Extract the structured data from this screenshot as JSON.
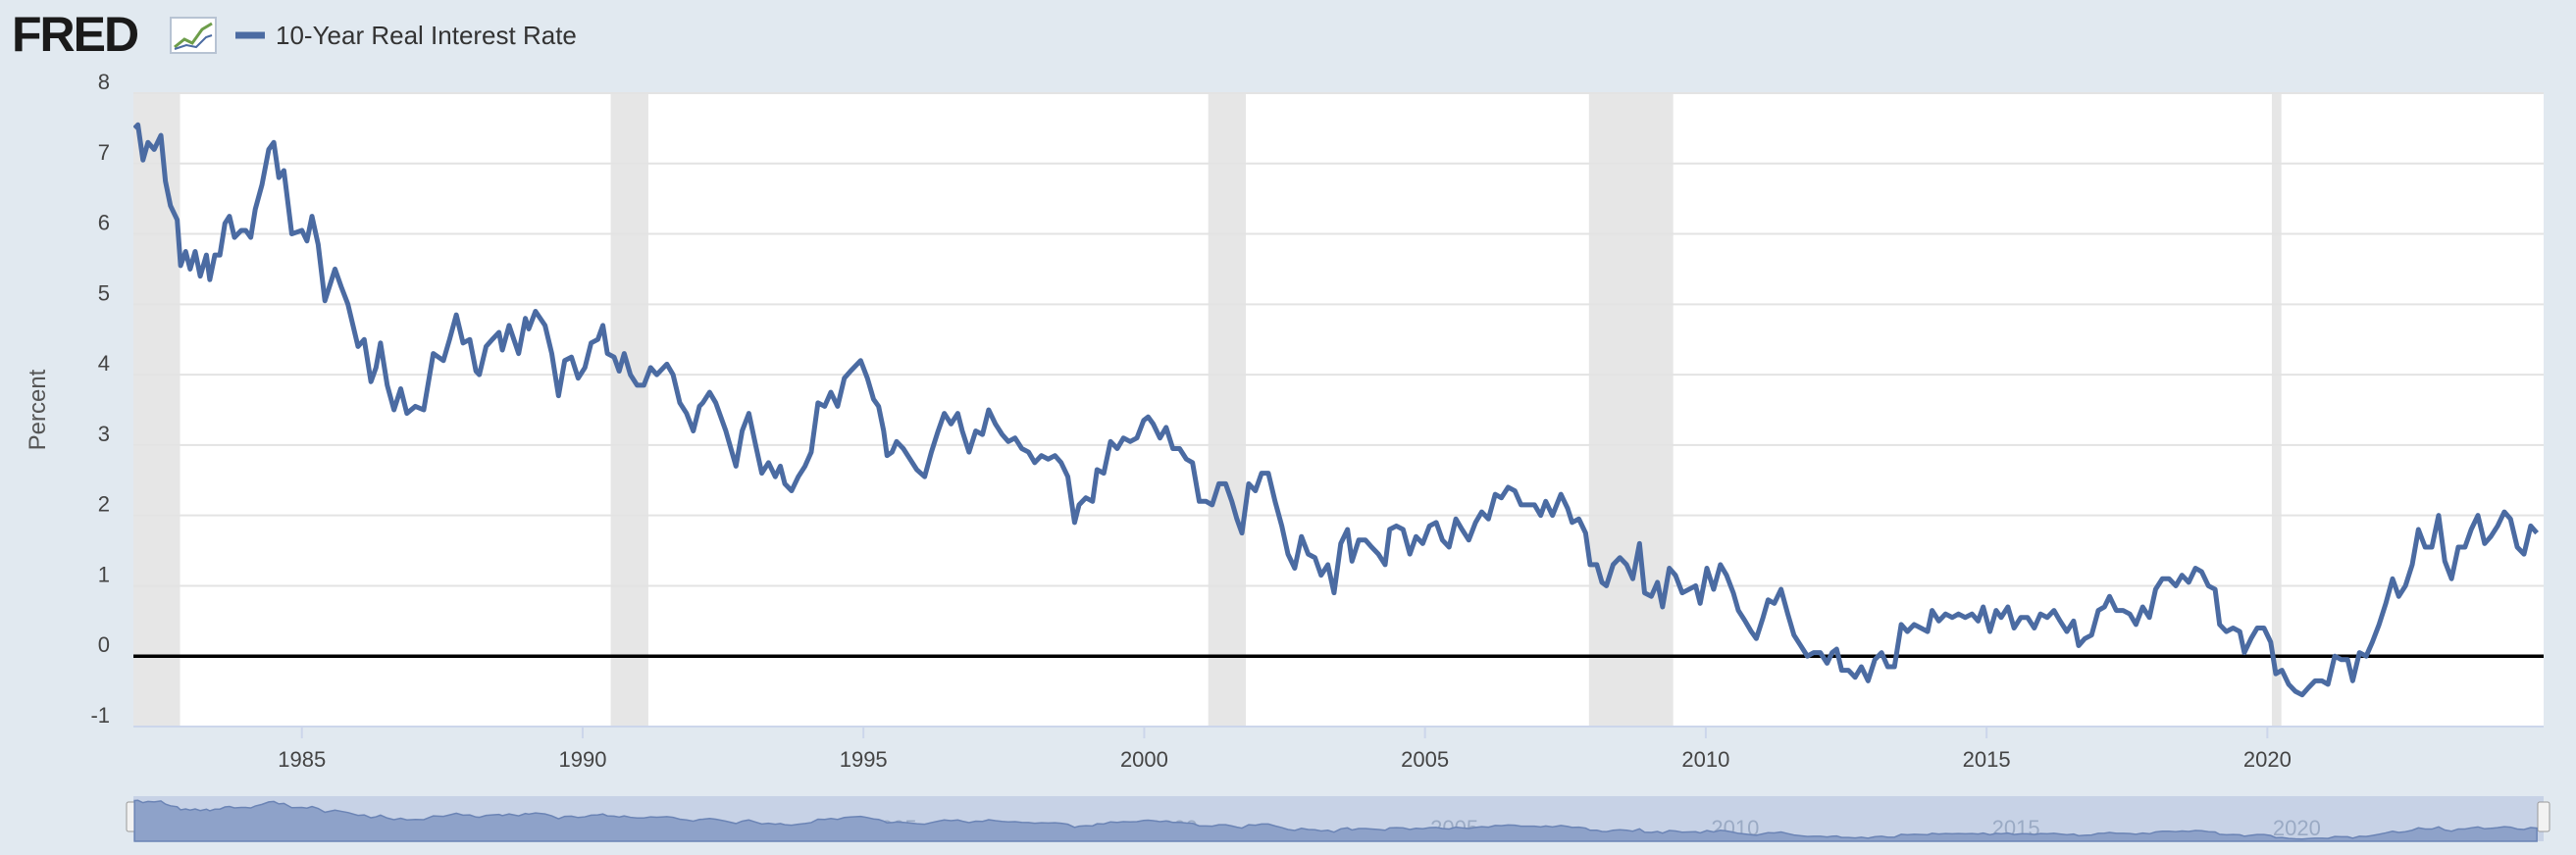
{
  "chart_data": {
    "type": "line",
    "logo_text": "FRED",
    "ylabel": "Percent",
    "xlim": [
      1982.0,
      2024.92
    ],
    "xticks": [
      1985,
      1990,
      1995,
      2000,
      2005,
      2010,
      2015,
      2020
    ],
    "ylim": [
      -1,
      8
    ],
    "yticks": [
      -1,
      0,
      1,
      2,
      3,
      4,
      5,
      6,
      7,
      8
    ],
    "grid": true,
    "zero_line": true,
    "legend": "top-left",
    "recessions": [
      [
        1981.58,
        1982.83
      ],
      [
        1990.5,
        1991.17
      ],
      [
        2001.14,
        2001.81
      ],
      [
        2007.92,
        2009.42
      ],
      [
        2020.08,
        2020.25
      ]
    ],
    "x": [
      1982.02,
      1982.08,
      1982.17,
      1982.26,
      1982.37,
      1982.49,
      1982.57,
      1982.66,
      1982.78,
      1982.84,
      1982.93,
      1983.01,
      1983.1,
      1983.19,
      1983.3,
      1983.36,
      1983.45,
      1983.54,
      1983.63,
      1983.71,
      1983.8,
      1983.92,
      1984.0,
      1984.09,
      1984.17,
      1984.29,
      1984.41,
      1984.5,
      1984.59,
      1984.68,
      1984.82,
      1985.0,
      1985.09,
      1985.18,
      1985.29,
      1985.41,
      1985.59,
      1985.7,
      1985.82,
      1986.0,
      1986.11,
      1986.23,
      1986.32,
      1986.4,
      1986.52,
      1986.64,
      1986.76,
      1986.87,
      1987.02,
      1987.17,
      1987.34,
      1987.52,
      1987.63,
      1987.75,
      1987.87,
      1987.99,
      1988.1,
      1988.16,
      1988.28,
      1988.39,
      1988.51,
      1988.57,
      1988.69,
      1988.86,
      1988.98,
      1989.04,
      1989.16,
      1989.33,
      1989.45,
      1989.57,
      1989.68,
      1989.8,
      1989.92,
      1990.04,
      1990.15,
      1990.27,
      1990.36,
      1990.44,
      1990.56,
      1990.65,
      1990.74,
      1990.85,
      1990.97,
      1991.09,
      1991.21,
      1991.32,
      1991.44,
      1991.5,
      1991.61,
      1991.73,
      1991.85,
      1991.97,
      1992.08,
      1992.14,
      1992.26,
      1992.37,
      1992.55,
      1992.73,
      1992.84,
      1992.96,
      1993.08,
      1993.19,
      1993.31,
      1993.43,
      1993.52,
      1993.6,
      1993.72,
      1993.84,
      1993.96,
      1994.07,
      1994.19,
      1994.31,
      1994.42,
      1994.54,
      1994.66,
      1994.77,
      1994.95,
      1995.07,
      1995.18,
      1995.27,
      1995.36,
      1995.42,
      1995.51,
      1995.59,
      1995.71,
      1995.83,
      1995.95,
      1996.09,
      1996.21,
      1996.33,
      1996.44,
      1996.56,
      1996.68,
      1996.76,
      1996.88,
      1997.0,
      1997.12,
      1997.23,
      1997.35,
      1997.47,
      1997.58,
      1997.7,
      1997.82,
      1997.94,
      1998.05,
      1998.17,
      1998.29,
      1998.41,
      1998.52,
      1998.64,
      1998.76,
      1998.84,
      1998.96,
      1999.08,
      1999.16,
      1999.28,
      1999.4,
      1999.52,
      1999.63,
      1999.75,
      1999.87,
      1999.99,
      2000.07,
      2000.16,
      2000.28,
      2000.39,
      2000.51,
      2000.63,
      2000.75,
      2000.86,
      2000.98,
      2001.1,
      2001.21,
      2001.33,
      2001.45,
      2001.56,
      2001.65,
      2001.74,
      2001.86,
      2001.98,
      2002.09,
      2002.21,
      2002.33,
      2002.45,
      2002.56,
      2002.68,
      2002.8,
      2002.92,
      2003.04,
      2003.15,
      2003.27,
      2003.38,
      2003.5,
      2003.62,
      2003.7,
      2003.82,
      2003.94,
      2004.05,
      2004.17,
      2004.29,
      2004.37,
      2004.49,
      2004.61,
      2004.73,
      2004.84,
      2004.96,
      2005.08,
      2005.2,
      2005.31,
      2005.43,
      2005.55,
      2005.66,
      2005.78,
      2005.9,
      2006.01,
      2006.13,
      2006.25,
      2006.36,
      2006.48,
      2006.6,
      2006.71,
      2006.83,
      2006.95,
      2007.06,
      2007.15,
      2007.27,
      2007.42,
      2007.54,
      2007.62,
      2007.74,
      2007.86,
      2007.94,
      2008.06,
      2008.15,
      2008.23,
      2008.35,
      2008.47,
      2008.59,
      2008.7,
      2008.82,
      2008.91,
      2009.03,
      2009.14,
      2009.23,
      2009.35,
      2009.46,
      2009.58,
      2009.7,
      2009.82,
      2009.9,
      2010.02,
      2010.14,
      2010.26,
      2010.37,
      2010.49,
      2010.58,
      2010.7,
      2010.81,
      2010.9,
      2011.02,
      2011.11,
      2011.22,
      2011.34,
      2011.46,
      2011.57,
      2011.69,
      2011.81,
      2011.92,
      2012.04,
      2012.16,
      2012.25,
      2012.33,
      2012.42,
      2012.54,
      2012.66,
      2012.77,
      2012.89,
      2013.01,
      2013.13,
      2013.24,
      2013.36,
      2013.48,
      2013.59,
      2013.71,
      2013.83,
      2013.95,
      2014.03,
      2014.15,
      2014.27,
      2014.39,
      2014.5,
      2014.62,
      2014.74,
      2014.85,
      2014.94,
      2015.06,
      2015.17,
      2015.26,
      2015.38,
      2015.49,
      2015.61,
      2015.73,
      2015.85,
      2015.96,
      2016.08,
      2016.2,
      2016.31,
      2016.43,
      2016.55,
      2016.64,
      2016.75,
      2016.87,
      2016.99,
      2017.1,
      2017.19,
      2017.31,
      2017.43,
      2017.55,
      2017.66,
      2017.78,
      2017.9,
      2018.01,
      2018.13,
      2018.25,
      2018.37,
      2018.48,
      2018.6,
      2018.72,
      2018.83,
      2018.95,
      2019.07,
      2019.15,
      2019.27,
      2019.39,
      2019.51,
      2019.59,
      2019.71,
      2019.82,
      2019.94,
      2020.06,
      2020.15,
      2020.26,
      2020.38,
      2020.5,
      2020.62,
      2020.73,
      2020.85,
      2020.97,
      2021.08,
      2021.2,
      2021.32,
      2021.43,
      2021.52,
      2021.64,
      2021.76,
      2021.87,
      2021.99,
      2022.11,
      2022.23,
      2022.34,
      2022.46,
      2022.58,
      2022.69,
      2022.81,
      2022.93,
      2023.05,
      2023.16,
      2023.28,
      2023.4,
      2023.52,
      2023.63,
      2023.75,
      2023.87,
      2023.98,
      2024.1,
      2024.22,
      2024.33,
      2024.45,
      2024.57,
      2024.69,
      2024.8
    ],
    "series": [
      {
        "name": "10-Year Real Interest Rate",
        "color": "#4b6ba2",
        "values": [
          7.5,
          7.55,
          7.05,
          7.3,
          7.2,
          7.4,
          6.75,
          6.4,
          6.2,
          5.55,
          5.75,
          5.5,
          5.75,
          5.4,
          5.7,
          5.35,
          5.7,
          5.7,
          6.15,
          6.25,
          5.95,
          6.05,
          6.05,
          5.95,
          6.35,
          6.7,
          7.2,
          7.3,
          6.8,
          6.9,
          6.0,
          6.05,
          5.9,
          6.25,
          5.85,
          5.05,
          5.5,
          5.25,
          5.0,
          4.4,
          4.5,
          3.9,
          4.1,
          4.45,
          3.85,
          3.5,
          3.8,
          3.45,
          3.55,
          3.5,
          4.3,
          4.2,
          4.5,
          4.85,
          4.45,
          4.5,
          4.05,
          4.0,
          4.4,
          4.5,
          4.6,
          4.35,
          4.7,
          4.3,
          4.8,
          4.65,
          4.9,
          4.7,
          4.3,
          3.7,
          4.2,
          4.25,
          3.95,
          4.1,
          4.45,
          4.5,
          4.7,
          4.3,
          4.25,
          4.05,
          4.3,
          4.0,
          3.85,
          3.85,
          4.1,
          4.0,
          4.1,
          4.15,
          4.0,
          3.6,
          3.45,
          3.2,
          3.55,
          3.6,
          3.75,
          3.6,
          3.2,
          2.7,
          3.2,
          3.45,
          3.0,
          2.6,
          2.75,
          2.55,
          2.7,
          2.45,
          2.35,
          2.55,
          2.7,
          2.9,
          3.6,
          3.55,
          3.75,
          3.55,
          3.95,
          4.05,
          4.2,
          3.95,
          3.65,
          3.55,
          3.2,
          2.85,
          2.9,
          3.05,
          2.95,
          2.8,
          2.65,
          2.55,
          2.9,
          3.2,
          3.45,
          3.3,
          3.45,
          3.2,
          2.9,
          3.2,
          3.15,
          3.5,
          3.3,
          3.15,
          3.05,
          3.1,
          2.95,
          2.9,
          2.75,
          2.85,
          2.8,
          2.85,
          2.75,
          2.55,
          1.9,
          2.15,
          2.25,
          2.2,
          2.65,
          2.6,
          3.05,
          2.95,
          3.1,
          3.05,
          3.1,
          3.35,
          3.4,
          3.3,
          3.1,
          3.25,
          2.95,
          2.95,
          2.8,
          2.75,
          2.2,
          2.2,
          2.15,
          2.45,
          2.45,
          2.2,
          1.95,
          1.75,
          2.45,
          2.35,
          2.6,
          2.6,
          2.2,
          1.85,
          1.45,
          1.25,
          1.7,
          1.45,
          1.4,
          1.15,
          1.3,
          0.9,
          1.6,
          1.8,
          1.35,
          1.65,
          1.65,
          1.55,
          1.45,
          1.3,
          1.8,
          1.85,
          1.8,
          1.45,
          1.7,
          1.6,
          1.85,
          1.9,
          1.65,
          1.55,
          1.95,
          1.8,
          1.65,
          1.9,
          2.05,
          1.95,
          2.3,
          2.25,
          2.4,
          2.35,
          2.15,
          2.15,
          2.15,
          2.0,
          2.2,
          2.0,
          2.3,
          2.1,
          1.9,
          1.95,
          1.75,
          1.3,
          1.3,
          1.05,
          1.0,
          1.3,
          1.4,
          1.3,
          1.1,
          1.6,
          0.9,
          0.85,
          1.05,
          0.7,
          1.25,
          1.15,
          0.9,
          0.95,
          1.0,
          0.75,
          1.25,
          0.95,
          1.3,
          1.15,
          0.9,
          0.65,
          0.5,
          0.35,
          0.25,
          0.55,
          0.8,
          0.75,
          0.95,
          0.6,
          0.3,
          0.15,
          0.0,
          0.05,
          0.05,
          -0.1,
          0.05,
          0.1,
          -0.2,
          -0.2,
          -0.3,
          -0.15,
          -0.35,
          -0.05,
          0.05,
          -0.15,
          -0.15,
          0.45,
          0.35,
          0.45,
          0.4,
          0.35,
          0.65,
          0.5,
          0.6,
          0.55,
          0.6,
          0.55,
          0.6,
          0.5,
          0.7,
          0.35,
          0.65,
          0.55,
          0.7,
          0.4,
          0.55,
          0.55,
          0.4,
          0.6,
          0.55,
          0.65,
          0.5,
          0.35,
          0.5,
          0.15,
          0.25,
          0.3,
          0.65,
          0.7,
          0.85,
          0.65,
          0.65,
          0.6,
          0.45,
          0.7,
          0.55,
          0.95,
          1.1,
          1.1,
          1.0,
          1.15,
          1.05,
          1.25,
          1.2,
          1.0,
          0.95,
          0.45,
          0.35,
          0.4,
          0.35,
          0.05,
          0.25,
          0.4,
          0.4,
          0.2,
          -0.25,
          -0.2,
          -0.4,
          -0.5,
          -0.55,
          -0.45,
          -0.35,
          -0.35,
          -0.4,
          0.0,
          -0.05,
          -0.05,
          -0.35,
          0.05,
          0.0,
          0.2,
          0.45,
          0.75,
          1.1,
          0.85,
          1.0,
          1.3,
          1.8,
          1.55,
          1.55,
          2.0,
          1.35,
          1.1,
          1.55,
          1.55,
          1.8,
          2.0,
          1.6,
          1.7,
          1.85,
          2.05,
          1.95,
          1.55,
          1.45,
          1.85,
          1.75
        ]
      }
    ]
  }
}
